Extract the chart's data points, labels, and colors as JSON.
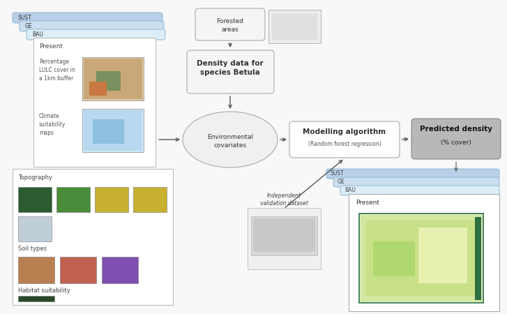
{
  "bg_color": "#f8f8f8",
  "light_blue1": "#b8d0e8",
  "light_blue2": "#ccdff0",
  "light_blue3": "#ddeef8",
  "white": "#ffffff",
  "gray_box": "#b8b8b8",
  "off_white": "#f2f2f2",
  "near_white": "#f5f5f5",
  "scenario_labels_left": [
    "SUST",
    "GE",
    "BAU"
  ],
  "scenario_labels_right": [
    "SUST",
    "GE",
    "BAU"
  ],
  "present_label": "Present",
  "lulc_text": "Percentage\nLULC cover in\na 1km buffer",
  "climate_text": "Climate\nsuitability\nmaps",
  "topo_text": "Topography",
  "soil_text": "Soil types",
  "habitat_text": "Habitat suitability",
  "forested_text": "Forested\nareas",
  "density_text": "Density data for\nspecies Betula",
  "env_cov_text": "Environmental\ncovariates",
  "modelling_text": "Modelling algorithm",
  "rf_text": "(Random forest regression)",
  "predicted_line1": "Predicted density",
  "predicted_line2": "(% cover)",
  "validation_text": "Independent\nvalidation dataset",
  "font_sz": 6.5,
  "font_sz_sm": 5.5,
  "font_sz_md": 7.5,
  "font_sz_lg": 8.5
}
